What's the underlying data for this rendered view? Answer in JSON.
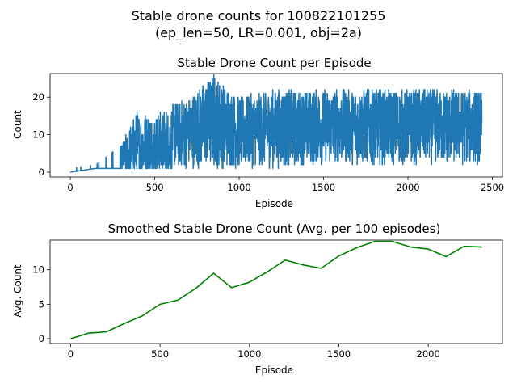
{
  "figure": {
    "suptitle_line1": "Stable drone counts for 100822101255",
    "suptitle_line2": "(ep_len=50, LR=0.001, obj=2a)"
  },
  "chart_data": [
    {
      "type": "line",
      "title": "Stable Drone Count per Episode",
      "xlabel": "Episode",
      "ylabel": "Count",
      "xlim": [
        -120,
        2560
      ],
      "ylim": [
        -1.3,
        26.3
      ],
      "xticks": [
        0,
        500,
        1000,
        1500,
        2000,
        2500
      ],
      "yticks": [
        0,
        10,
        20
      ],
      "grid": false,
      "legend": "none",
      "color": "#1f77b4",
      "series": [
        {
          "x_start": 0,
          "x_step": 1,
          "n_points": 2440,
          "description_note": "",
          "envelope": [
            {
              "x": 0,
              "low": 0,
              "high": 1
            },
            {
              "x": 150,
              "low": 1,
              "high": 2
            },
            {
              "x": 300,
              "low": 1,
              "high": 7
            },
            {
              "x": 400,
              "low": 1,
              "high": 17
            },
            {
              "x": 500,
              "low": 1,
              "high": 16
            },
            {
              "x": 700,
              "low": 1,
              "high": 20
            },
            {
              "x": 850,
              "low": 1,
              "high": 26
            },
            {
              "x": 1000,
              "low": 1,
              "high": 20
            },
            {
              "x": 1200,
              "low": 1,
              "high": 22
            },
            {
              "x": 1500,
              "low": 2,
              "high": 22
            },
            {
              "x": 2000,
              "low": 2,
              "high": 22
            },
            {
              "x": 2440,
              "low": 2,
              "high": 22
            }
          ]
        }
      ]
    },
    {
      "type": "line",
      "title": "Smoothed Stable Drone Count (Avg. per 100 episodes)",
      "xlabel": "Episode",
      "ylabel": "Avg. Count",
      "xlim": [
        -115,
        2415
      ],
      "ylim": [
        -0.7,
        14.3
      ],
      "xticks": [
        0,
        500,
        1000,
        1500,
        2000
      ],
      "yticks": [
        0,
        5,
        10
      ],
      "grid": false,
      "legend": "none",
      "color": "#008000",
      "x": [
        0,
        100,
        200,
        300,
        400,
        500,
        600,
        700,
        800,
        900,
        1000,
        1100,
        1200,
        1300,
        1400,
        1500,
        1600,
        1700,
        1800,
        1900,
        2000,
        2100,
        2200,
        2300
      ],
      "y": [
        0.0,
        0.8,
        1.0,
        2.2,
        3.3,
        5.0,
        5.6,
        7.3,
        9.5,
        7.4,
        8.2,
        9.7,
        11.4,
        10.7,
        10.2,
        12.0,
        13.2,
        14.1,
        14.1,
        13.3,
        13.0,
        11.9,
        13.4,
        13.3
      ]
    }
  ]
}
